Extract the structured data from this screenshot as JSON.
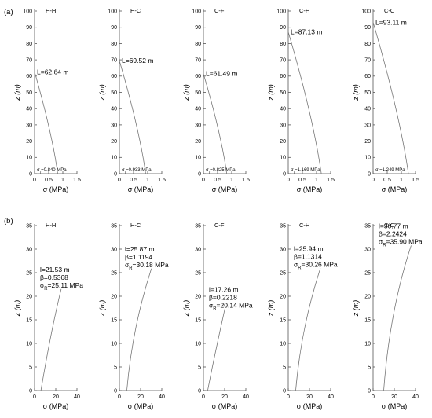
{
  "row_labels": [
    "(a)",
    "(b)"
  ],
  "chart_data": [
    {
      "type": "line",
      "row": "(a)",
      "title": "H-H",
      "xlabel": "σ (MPa)",
      "ylabel": "z (m)",
      "xlim": [
        0,
        1.5
      ],
      "ylim": [
        0,
        100
      ],
      "xticks": [
        "0",
        "0.5",
        "1",
        "1.5"
      ],
      "yticks": [
        "0",
        "10",
        "20",
        "30",
        "40",
        "50",
        "60",
        "70",
        "80",
        "90",
        "100"
      ],
      "annotation": "L=62.64 m",
      "base_label": "σr=0.840 MPa",
      "series": [
        {
          "x": [
            0,
            0.62,
            0.82
          ],
          "y": [
            62.64,
            25,
            0
          ]
        }
      ]
    },
    {
      "type": "line",
      "row": "(a)",
      "title": "H-C",
      "xlabel": "σ (MPa)",
      "ylabel": "z (m)",
      "xlim": [
        0,
        1.5
      ],
      "ylim": [
        0,
        100
      ],
      "xticks": [
        "0",
        "0.5",
        "1",
        "1.5"
      ],
      "yticks": [
        "0",
        "10",
        "20",
        "30",
        "40",
        "50",
        "60",
        "70",
        "80",
        "90",
        "100"
      ],
      "annotation": "L=69.52 m",
      "base_label": "σr=0.933 MPa",
      "series": [
        {
          "x": [
            0,
            0.7,
            0.93
          ],
          "y": [
            69.52,
            28,
            0
          ]
        }
      ]
    },
    {
      "type": "line",
      "row": "(a)",
      "title": "C-F",
      "xlabel": "σ (MPa)",
      "ylabel": "z (m)",
      "xlim": [
        0,
        1.5
      ],
      "ylim": [
        0,
        100
      ],
      "xticks": [
        "0",
        "0.5",
        "1",
        "1.5"
      ],
      "yticks": [
        "0",
        "10",
        "20",
        "30",
        "40",
        "50",
        "60",
        "70",
        "80",
        "90",
        "100"
      ],
      "annotation": "L=61.49 m",
      "base_label": "σr=0.825 MPa",
      "series": [
        {
          "x": [
            0,
            0.62,
            0.825
          ],
          "y": [
            61.49,
            25,
            0
          ]
        }
      ]
    },
    {
      "type": "line",
      "row": "(a)",
      "title": "C-H",
      "xlabel": "σ (MPa)",
      "ylabel": "z (m)",
      "xlim": [
        0,
        1.5
      ],
      "ylim": [
        0,
        100
      ],
      "xticks": [
        "0",
        "0.5",
        "1",
        "1.5"
      ],
      "yticks": [
        "0",
        "10",
        "20",
        "30",
        "40",
        "50",
        "60",
        "70",
        "80",
        "90",
        "100"
      ],
      "annotation": "L=87.13 m",
      "base_label": "σr=1.169 MPa",
      "series": [
        {
          "x": [
            0,
            0.88,
            1.17
          ],
          "y": [
            87.13,
            35,
            0
          ]
        }
      ]
    },
    {
      "type": "line",
      "row": "(a)",
      "title": "C-C",
      "xlabel": "σ (MPa)",
      "ylabel": "z (m)",
      "xlim": [
        0,
        1.5
      ],
      "ylim": [
        0,
        100
      ],
      "xticks": [
        "0",
        "0.5",
        "1",
        "1.5"
      ],
      "yticks": [
        "0",
        "10",
        "20",
        "30",
        "40",
        "50",
        "60",
        "70",
        "80",
        "90",
        "100"
      ],
      "annotation": "L=93.11 m",
      "base_label": "σr=1.249 MPa",
      "series": [
        {
          "x": [
            0,
            0.94,
            1.25
          ],
          "y": [
            93.11,
            37,
            0
          ]
        }
      ]
    },
    {
      "type": "line",
      "row": "(b)",
      "title": "H-H",
      "xlabel": "σ (MPa)",
      "ylabel": "z (m)",
      "xlim": [
        0,
        40
      ],
      "ylim": [
        0,
        35
      ],
      "xticks": [
        "0",
        "20",
        "40"
      ],
      "yticks": [
        "0",
        "5",
        "10",
        "15",
        "20",
        "25",
        "30",
        "35"
      ],
      "annotation_lines": [
        "l=21.53 m",
        "β=0.5368",
        "σR=25.11 MPa"
      ],
      "series": [
        {
          "x": [
            6,
            12,
            18,
            25.11
          ],
          "y": [
            0,
            8,
            15,
            21.53
          ]
        }
      ]
    },
    {
      "type": "line",
      "row": "(b)",
      "title": "H-C",
      "xlabel": "σ (MPa)",
      "ylabel": "z (m)",
      "xlim": [
        0,
        40
      ],
      "ylim": [
        0,
        35
      ],
      "xticks": [
        "0",
        "20",
        "40"
      ],
      "yticks": [
        "0",
        "5",
        "10",
        "15",
        "20",
        "25",
        "30",
        "35"
      ],
      "annotation_lines": [
        "l=25.87 m",
        "β=1.1194",
        "σR=30.18 MPa"
      ],
      "series": [
        {
          "x": [
            7,
            11,
            19,
            30.18
          ],
          "y": [
            0,
            10,
            18,
            25.87
          ]
        }
      ]
    },
    {
      "type": "line",
      "row": "(b)",
      "title": "C-F",
      "xlabel": "σ (MPa)",
      "ylabel": "z (m)",
      "xlim": [
        0,
        40
      ],
      "ylim": [
        0,
        35
      ],
      "xticks": [
        "0",
        "20",
        "40"
      ],
      "yticks": [
        "0",
        "5",
        "10",
        "15",
        "20",
        "25",
        "30",
        "35"
      ],
      "annotation_lines": [
        "l=17.26 m",
        "β=0.2218",
        "σR=20.14 MPa"
      ],
      "series": [
        {
          "x": [
            4,
            10,
            15,
            20.14
          ],
          "y": [
            0,
            7,
            12,
            17.26
          ]
        }
      ]
    },
    {
      "type": "line",
      "row": "(b)",
      "title": "C-H",
      "xlabel": "σ (MPa)",
      "ylabel": "z (m)",
      "xlim": [
        0,
        40
      ],
      "ylim": [
        0,
        35
      ],
      "xticks": [
        "0",
        "20",
        "40"
      ],
      "yticks": [
        "0",
        "5",
        "10",
        "15",
        "20",
        "25",
        "30",
        "35"
      ],
      "annotation_lines": [
        "l=25.94 m",
        "β=1.1314",
        "σR=30.26 MPa"
      ],
      "series": [
        {
          "x": [
            7,
            11,
            19,
            30.26
          ],
          "y": [
            0,
            10,
            18,
            25.94
          ]
        }
      ]
    },
    {
      "type": "line",
      "row": "(b)",
      "title": "C-C",
      "xlabel": "σ (MPa)",
      "ylabel": "z (m)",
      "xlim": [
        0,
        40
      ],
      "ylim": [
        0,
        35
      ],
      "xticks": [
        "0",
        "20",
        "40"
      ],
      "yticks": [
        "0",
        "5",
        "10",
        "15",
        "20",
        "25",
        "30",
        "35"
      ],
      "annotation_lines": [
        "l=30.77 m",
        "β=2.2424",
        "σR=35.90 MPa"
      ],
      "series": [
        {
          "x": [
            10,
            14,
            23,
            35.9
          ],
          "y": [
            0,
            12,
            22,
            30.77
          ]
        }
      ]
    }
  ]
}
